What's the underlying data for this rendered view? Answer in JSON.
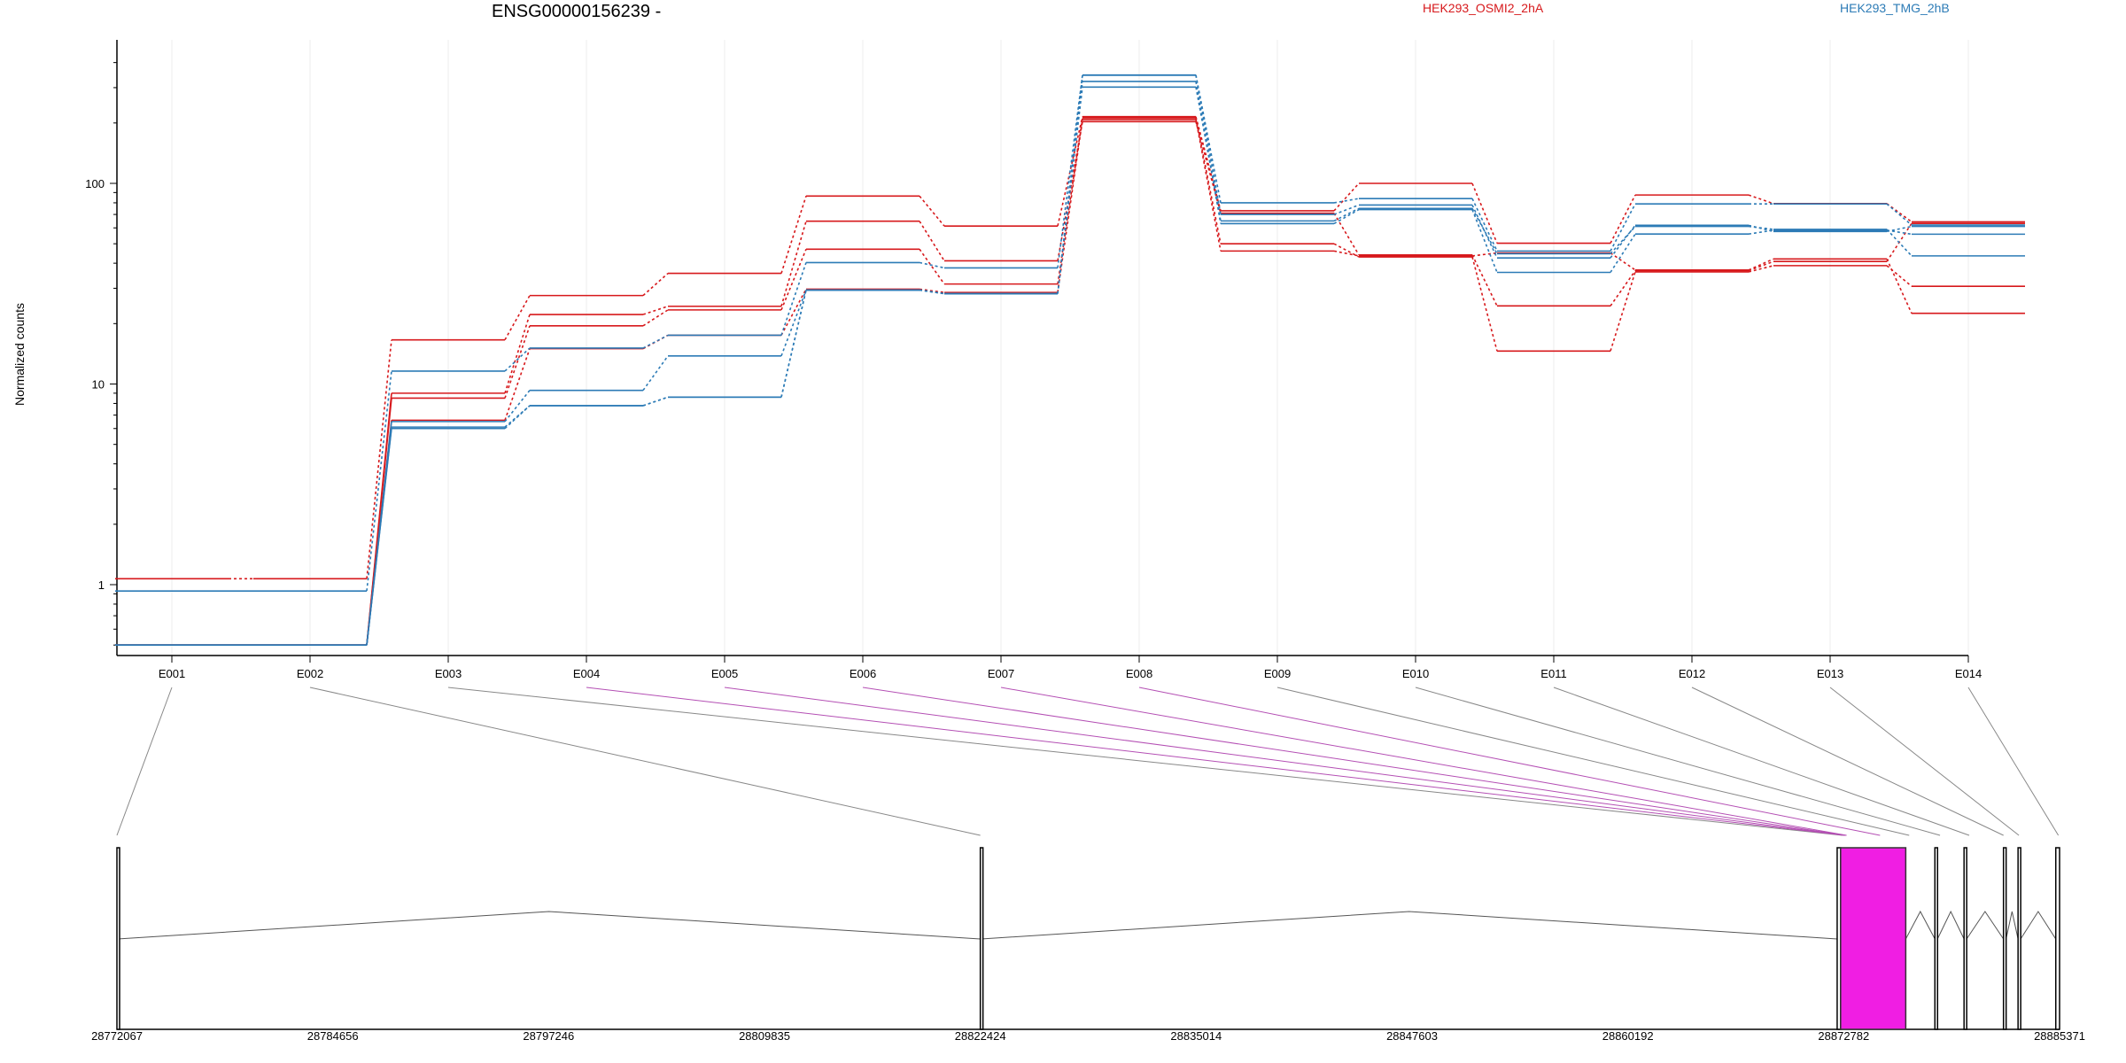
{
  "chart_data": [
    {
      "type": "line",
      "title": "ENSG00000156239 -",
      "ylabel": "Normalized counts",
      "yscale": "log",
      "ylim": [
        0.48,
        420
      ],
      "yticks": [
        1,
        10,
        100
      ],
      "grid": "vertical",
      "legend_placement": "top",
      "categories": [
        "E001",
        "E002",
        "E003",
        "E004",
        "E005",
        "E006",
        "E007",
        "E008",
        "E009",
        "E010",
        "E011",
        "E012",
        "E013",
        "E014"
      ],
      "series": [
        {
          "name": "HEK293_OSMI2_2hA",
          "color": "#d7191c",
          "dashed_after": [
            0,
            1,
            2,
            3,
            4,
            5,
            6,
            7,
            8,
            9,
            10,
            11,
            12
          ],
          "values": [
            1.07,
            1.07,
            16.6,
            27.6,
            35.6,
            86.5,
            61.3,
            215,
            73,
            100,
            50.3,
            87.5,
            79.3,
            64.3
          ]
        },
        {
          "name": "",
          "color": "#d7191c",
          "dashed_after": [
            2,
            3,
            4,
            5,
            6,
            7,
            8,
            9,
            10,
            11,
            12
          ],
          "values": [
            0.5,
            0.5,
            9.0,
            22.2,
            24.4,
            64.8,
            41.1,
            203,
            71,
            44,
            24.5,
            36.7,
            40.8,
            63.2
          ]
        },
        {
          "name": "",
          "color": "#d7191c",
          "dashed_after": [
            2,
            3,
            4,
            5,
            6,
            7,
            8,
            9,
            10,
            11,
            12
          ],
          "values": [
            0.5,
            0.5,
            8.5,
            19.5,
            23.4,
            47.0,
            31.5,
            212,
            50,
            43,
            14.6,
            36.2,
            38.9,
            30.7
          ]
        },
        {
          "name": "",
          "color": "#d7191c",
          "dashed_after": [
            2,
            3,
            4,
            5,
            6,
            7,
            8,
            9,
            10,
            11,
            12
          ],
          "values": [
            0.5,
            0.5,
            6.6,
            15.0,
            17.5,
            29.7,
            28.6,
            208,
            46,
            43.5,
            45,
            37,
            42,
            22.5
          ]
        },
        {
          "name": "HEK293_TMG_2hB",
          "color": "#2c7bb6",
          "dashed_after": [
            1,
            2,
            3,
            4,
            5,
            6,
            7,
            8,
            9,
            10,
            11,
            12
          ],
          "values": [
            0.93,
            0.93,
            11.6,
            15.1,
            17.5,
            40.3,
            37.9,
            347,
            80,
            84,
            46,
            79,
            79,
            62
          ]
        },
        {
          "name": "",
          "color": "#2c7bb6",
          "dashed_after": [
            2,
            3,
            4,
            5,
            6,
            7,
            8,
            9,
            10,
            11,
            12
          ],
          "values": [
            0.5,
            0.5,
            6.5,
            9.3,
            13.8,
            29.4,
            28.2,
            346,
            70,
            78,
            42.5,
            61.8,
            57.6,
            61
          ]
        },
        {
          "name": "",
          "color": "#2c7bb6",
          "dashed_after": [
            2,
            3,
            4,
            5,
            6,
            7,
            8,
            9,
            10,
            11,
            12
          ],
          "values": [
            0.5,
            0.5,
            6.1,
            7.8,
            8.6,
            29.4,
            28.2,
            322,
            63,
            74,
            36,
            55.9,
            58.4,
            55.8
          ]
        },
        {
          "name": "",
          "color": "#2c7bb6",
          "dashed_after": [
            2,
            3,
            4,
            5,
            6,
            7,
            8,
            9,
            10,
            11,
            12
          ],
          "values": [
            0.5,
            0.5,
            6.0,
            7.8,
            8.6,
            29.4,
            28.2,
            302,
            65,
            75,
            44.6,
            61,
            59,
            43.5
          ]
        }
      ]
    },
    {
      "type": "gene-model",
      "xlim": [
        28772067,
        28885371
      ],
      "xticks": [
        28772067,
        28784656,
        28797246,
        28809835,
        28822424,
        28835014,
        28847603,
        28860192,
        28872782,
        28885371
      ],
      "exons": [
        {
          "start": 28772067,
          "end": 28772100,
          "highlight": false
        },
        {
          "start": 28822424,
          "end": 28822470,
          "highlight": false
        },
        {
          "start": 28872400,
          "end": 28872600,
          "highlight": false
        },
        {
          "start": 28872600,
          "end": 28876400,
          "highlight": true
        },
        {
          "start": 28878100,
          "end": 28878250,
          "highlight": false
        },
        {
          "start": 28879800,
          "end": 28879950,
          "highlight": false
        },
        {
          "start": 28882100,
          "end": 28882250,
          "highlight": false
        },
        {
          "start": 28882950,
          "end": 28883100,
          "highlight": false
        },
        {
          "start": 28885150,
          "end": 28885371,
          "highlight": false
        }
      ],
      "exon_links": [
        {
          "exon": "E001",
          "pos": 28772067,
          "highlight": false
        },
        {
          "exon": "E002",
          "pos": 28822424,
          "highlight": false
        },
        {
          "exon": "E003",
          "pos": 28872700,
          "highlight": false
        },
        {
          "exon": "E004",
          "pos": 28872800,
          "highlight": true
        },
        {
          "exon": "E005",
          "pos": 28872850,
          "highlight": true
        },
        {
          "exon": "E006",
          "pos": 28872900,
          "highlight": true
        },
        {
          "exon": "E007",
          "pos": 28872950,
          "highlight": true
        },
        {
          "exon": "E008",
          "pos": 28874900,
          "highlight": true
        },
        {
          "exon": "E009",
          "pos": 28876600,
          "highlight": false
        },
        {
          "exon": "E010",
          "pos": 28878400,
          "highlight": false
        },
        {
          "exon": "E011",
          "pos": 28880100,
          "highlight": false
        },
        {
          "exon": "E012",
          "pos": 28882100,
          "highlight": false
        },
        {
          "exon": "E013",
          "pos": 28883000,
          "highlight": false
        },
        {
          "exon": "E014",
          "pos": 28885300,
          "highlight": false
        }
      ]
    }
  ]
}
